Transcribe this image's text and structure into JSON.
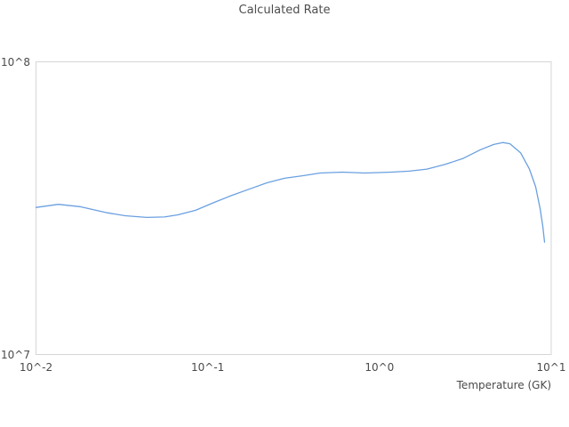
{
  "title": "Calculated Rate",
  "colors": {
    "line": "#6aa0e0",
    "border": "#d6d6d6",
    "text": "#4a4a4a",
    "background": "#ffffff"
  },
  "chart_data": {
    "type": "line",
    "title": "Calculated Rate",
    "xlabel": "Temperature (GK)",
    "ylabel": "",
    "x_scale": "log",
    "y_scale": "log",
    "xlim": [
      0.01,
      10
    ],
    "ylim": [
      10000000.0,
      100000000.0
    ],
    "x_tick_values": [
      0.01,
      0.1,
      1,
      10
    ],
    "x_tick_labels": [
      "10^-2",
      "10^-1",
      "10^0",
      "10^1"
    ],
    "y_tick_values": [
      10000000.0,
      100000000.0
    ],
    "y_tick_labels": [
      "10^7",
      "10^8"
    ],
    "grid": false,
    "legend": false,
    "series": [
      {
        "name": "Calculated Rate",
        "color": "#6aa0e0",
        "x": [
          0.01,
          0.0135,
          0.018,
          0.026,
          0.033,
          0.044,
          0.056,
          0.067,
          0.085,
          0.108,
          0.137,
          0.174,
          0.221,
          0.28,
          0.355,
          0.451,
          0.609,
          0.82,
          1.17,
          1.49,
          1.89,
          2.4,
          3.05,
          3.87,
          4.63,
          5.22,
          5.75,
          6.63,
          7.47,
          8.12,
          8.63,
          8.94,
          9.15
        ],
        "y": [
          31800000.0,
          32600000.0,
          32000000.0,
          30500000.0,
          29800000.0,
          29400000.0,
          29500000.0,
          30000000.0,
          31100000.0,
          33000000.0,
          34900000.0,
          36700000.0,
          38600000.0,
          40000000.0,
          40800000.0,
          41700000.0,
          42000000.0,
          41700000.0,
          42000000.0,
          42300000.0,
          43000000.0,
          44600000.0,
          46700000.0,
          50100000.0,
          52200000.0,
          53000000.0,
          52500000.0,
          48900000.0,
          43000000.0,
          37400000.0,
          31400000.0,
          27300000.0,
          24200000.0
        ]
      }
    ]
  }
}
